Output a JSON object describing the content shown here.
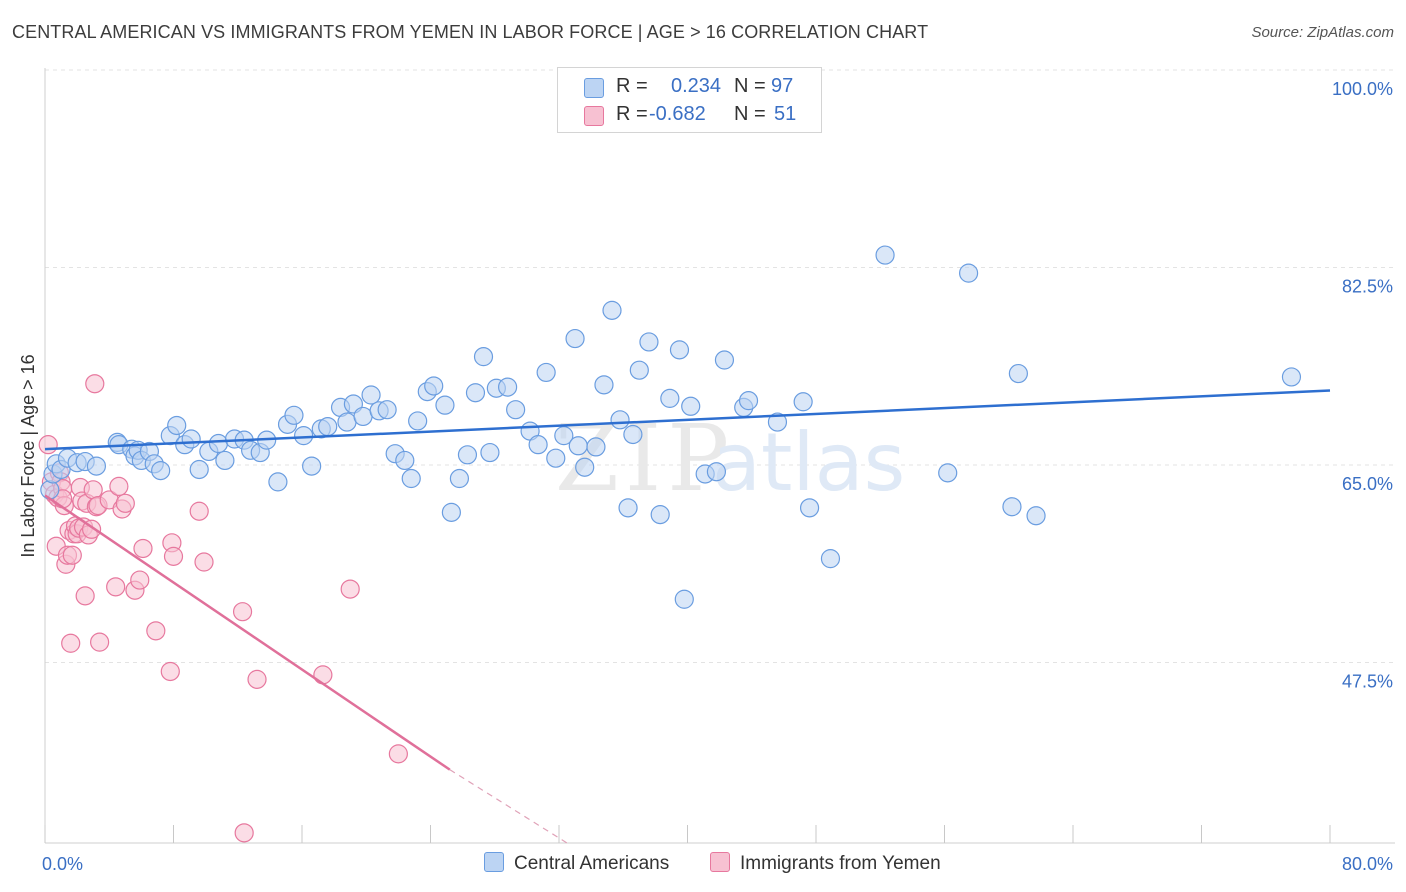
{
  "title": "CENTRAL AMERICAN VS IMMIGRANTS FROM YEMEN IN LABOR FORCE | AGE > 16 CORRELATION CHART",
  "source": "Source: ZipAtlas.com",
  "watermark": {
    "zip": "ZIP",
    "atlas": "atlas"
  },
  "legend": {
    "r_label": "R =",
    "n_label": "N =",
    "series": [
      {
        "r": "0.234",
        "n": "97",
        "color": "#a9c7ee"
      },
      {
        "r": "-0.682",
        "n": "51",
        "color": "#f6b9cb"
      }
    ]
  },
  "chart_data": {
    "type": "scatter",
    "xlabel": "",
    "ylabel": "In Labor Force | Age > 16",
    "xlim": [
      0,
      80
    ],
    "ylim": [
      31.5,
      100
    ],
    "x_tick_labels": [
      "0.0%",
      "80.0%"
    ],
    "y_ticks": [
      47.5,
      65.0,
      82.5,
      100.0
    ],
    "y_tick_labels": [
      "47.5%",
      "65.0%",
      "82.5%",
      "100.0%"
    ],
    "grid": true,
    "legend_position": "top-center",
    "series": [
      {
        "name": "Central Americans",
        "color": "#6a9de0",
        "fill": "#bcd4f3",
        "trend": {
          "x": [
            0,
            80
          ],
          "y": [
            66.4,
            71.6
          ]
        },
        "points": [
          [
            0.3,
            62.8
          ],
          [
            0.5,
            64.2
          ],
          [
            0.7,
            65.1
          ],
          [
            1.0,
            64.6
          ],
          [
            1.4,
            65.6
          ],
          [
            2.0,
            65.2
          ],
          [
            2.5,
            65.3
          ],
          [
            3.2,
            64.9
          ],
          [
            4.5,
            67.0
          ],
          [
            4.6,
            66.8
          ],
          [
            5.4,
            66.4
          ],
          [
            5.6,
            65.8
          ],
          [
            5.8,
            66.3
          ],
          [
            6.0,
            65.4
          ],
          [
            6.5,
            66.2
          ],
          [
            6.8,
            65.1
          ],
          [
            7.2,
            64.5
          ],
          [
            7.8,
            67.6
          ],
          [
            8.2,
            68.5
          ],
          [
            8.7,
            66.8
          ],
          [
            9.1,
            67.3
          ],
          [
            9.6,
            64.6
          ],
          [
            10.2,
            66.2
          ],
          [
            10.8,
            66.9
          ],
          [
            11.2,
            65.4
          ],
          [
            11.8,
            67.3
          ],
          [
            12.4,
            67.2
          ],
          [
            12.8,
            66.3
          ],
          [
            13.4,
            66.1
          ],
          [
            13.8,
            67.2
          ],
          [
            14.5,
            63.5
          ],
          [
            15.1,
            68.6
          ],
          [
            15.5,
            69.4
          ],
          [
            16.1,
            67.6
          ],
          [
            16.6,
            64.9
          ],
          [
            17.2,
            68.2
          ],
          [
            17.6,
            68.4
          ],
          [
            18.4,
            70.1
          ],
          [
            18.8,
            68.8
          ],
          [
            19.2,
            70.4
          ],
          [
            19.8,
            69.3
          ],
          [
            20.3,
            71.2
          ],
          [
            20.8,
            69.8
          ],
          [
            21.3,
            69.9
          ],
          [
            21.8,
            66.0
          ],
          [
            22.4,
            65.4
          ],
          [
            22.8,
            63.8
          ],
          [
            23.2,
            68.9
          ],
          [
            23.8,
            71.5
          ],
          [
            24.2,
            72.0
          ],
          [
            24.9,
            70.3
          ],
          [
            25.3,
            60.8
          ],
          [
            25.8,
            63.8
          ],
          [
            26.3,
            65.9
          ],
          [
            26.8,
            71.4
          ],
          [
            27.3,
            74.6
          ],
          [
            27.7,
            66.1
          ],
          [
            28.1,
            71.8
          ],
          [
            28.8,
            71.9
          ],
          [
            29.3,
            69.9
          ],
          [
            30.2,
            68.0
          ],
          [
            30.7,
            66.8
          ],
          [
            31.2,
            73.2
          ],
          [
            31.8,
            65.6
          ],
          [
            32.3,
            67.6
          ],
          [
            33.0,
            76.2
          ],
          [
            33.2,
            66.7
          ],
          [
            33.6,
            64.8
          ],
          [
            34.3,
            66.6
          ],
          [
            34.8,
            72.1
          ],
          [
            35.3,
            78.7
          ],
          [
            35.8,
            69.0
          ],
          [
            36.3,
            61.2
          ],
          [
            36.6,
            67.7
          ],
          [
            37.0,
            73.4
          ],
          [
            37.6,
            75.9
          ],
          [
            38.3,
            60.6
          ],
          [
            38.9,
            70.9
          ],
          [
            39.5,
            75.2
          ],
          [
            39.8,
            53.1
          ],
          [
            40.2,
            70.2
          ],
          [
            41.1,
            64.2
          ],
          [
            41.8,
            64.4
          ],
          [
            42.3,
            74.3
          ],
          [
            43.5,
            70.1
          ],
          [
            43.8,
            70.7
          ],
          [
            45.6,
            68.8
          ],
          [
            47.2,
            70.6
          ],
          [
            47.6,
            61.2
          ],
          [
            48.9,
            56.7
          ],
          [
            52.3,
            83.6
          ],
          [
            56.2,
            64.3
          ],
          [
            57.5,
            82.0
          ],
          [
            60.2,
            61.3
          ],
          [
            60.6,
            73.1
          ],
          [
            61.7,
            60.5
          ],
          [
            77.6,
            72.8
          ]
        ]
      },
      {
        "name": "Immigrants from Yemen",
        "color": "#e7789e",
        "fill": "#f7c1d2",
        "trend": {
          "x": [
            0,
            25.2
          ],
          "y": [
            62.3,
            38.0
          ]
        },
        "trend_dashed": {
          "x": [
            25.2,
            32.5
          ],
          "y": [
            38.0,
            31.5
          ]
        },
        "points": [
          [
            0.2,
            66.8
          ],
          [
            0.4,
            63.5
          ],
          [
            0.6,
            62.4
          ],
          [
            0.7,
            57.8
          ],
          [
            0.8,
            62.1
          ],
          [
            0.9,
            64.3
          ],
          [
            1.0,
            63.5
          ],
          [
            1.1,
            62.9
          ],
          [
            1.2,
            61.4
          ],
          [
            1.3,
            56.2
          ],
          [
            1.4,
            57.0
          ],
          [
            1.5,
            59.2
          ],
          [
            1.6,
            49.2
          ],
          [
            1.7,
            57.0
          ],
          [
            1.8,
            58.9
          ],
          [
            1.9,
            59.6
          ],
          [
            2.0,
            58.9
          ],
          [
            2.1,
            59.4
          ],
          [
            2.2,
            63.0
          ],
          [
            2.3,
            61.8
          ],
          [
            2.4,
            59.5
          ],
          [
            2.5,
            53.4
          ],
          [
            2.6,
            61.6
          ],
          [
            2.7,
            58.8
          ],
          [
            2.9,
            59.3
          ],
          [
            3.0,
            62.8
          ],
          [
            3.1,
            72.2
          ],
          [
            3.2,
            61.3
          ],
          [
            3.3,
            61.4
          ],
          [
            3.4,
            49.3
          ],
          [
            4.0,
            61.9
          ],
          [
            4.4,
            54.2
          ],
          [
            4.6,
            63.1
          ],
          [
            4.8,
            61.1
          ],
          [
            5.0,
            61.6
          ],
          [
            5.6,
            53.9
          ],
          [
            5.9,
            54.8
          ],
          [
            6.1,
            57.6
          ],
          [
            6.9,
            50.3
          ],
          [
            7.8,
            46.7
          ],
          [
            7.9,
            58.1
          ],
          [
            8.0,
            56.9
          ],
          [
            9.6,
            60.9
          ],
          [
            9.9,
            56.4
          ],
          [
            12.3,
            52.0
          ],
          [
            13.2,
            46.0
          ],
          [
            17.3,
            46.4
          ],
          [
            19.0,
            54.0
          ],
          [
            22.0,
            39.4
          ],
          [
            12.4,
            32.4
          ],
          [
            1.1,
            62.0
          ]
        ]
      }
    ]
  }
}
